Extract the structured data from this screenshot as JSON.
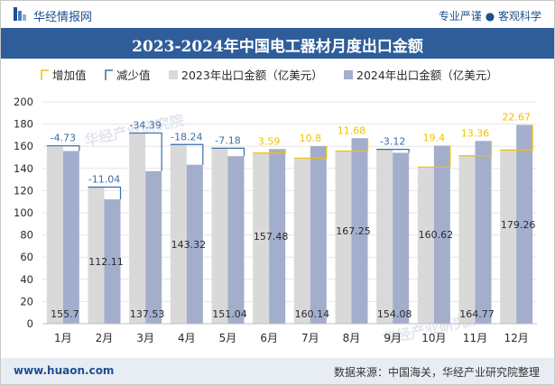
{
  "header": {
    "brand": "华经情报网",
    "tagline": "专业严谨 ● 客观科学",
    "title": "2023-2024年中国电工器材月度出口金额"
  },
  "footer": {
    "website": "www.huaon.com",
    "source": "数据来源：中国海关，华经产业研究院整理"
  },
  "watermark": "华经产业研究院",
  "colors": {
    "bar2023": "#d9d9d9",
    "bar2024": "#a3aecd",
    "increase": "#f2c200",
    "decrease": "#3a6ea5",
    "title_bg": "#2f5d9a",
    "label": "#2a2a2a"
  },
  "chart_data": {
    "type": "bar",
    "title": "2023-2024年中国电工器材月度出口金额",
    "categories": [
      "1月",
      "2月",
      "3月",
      "4月",
      "5月",
      "6月",
      "7月",
      "8月",
      "9月",
      "10月",
      "11月",
      "12月"
    ],
    "ylim": [
      0,
      200
    ],
    "yticks": [
      0,
      20,
      40,
      60,
      80,
      100,
      120,
      140,
      160,
      180,
      200
    ],
    "legend": {
      "placement": "top",
      "items": [
        "增加值",
        "减少值",
        "2023年出口金额（亿美元）",
        "2024年出口金额（亿美元）"
      ]
    },
    "series": [
      {
        "name": "2023年出口金额（亿美元）",
        "values": [
          160.43,
          123.15,
          171.92,
          161.56,
          158.22,
          153.89,
          149.34,
          155.57,
          157.2,
          141.22,
          151.41,
          156.59
        ]
      },
      {
        "name": "2024年出口金额（亿美元）",
        "values": [
          155.7,
          112.11,
          137.53,
          143.32,
          151.04,
          157.48,
          160.14,
          167.25,
          154.08,
          160.62,
          164.77,
          179.26
        ]
      }
    ],
    "changes": [
      -4.73,
      -11.04,
      -34.39,
      -18.24,
      -7.18,
      3.59,
      10.8,
      11.68,
      -3.12,
      19.4,
      13.36,
      22.67
    ]
  }
}
